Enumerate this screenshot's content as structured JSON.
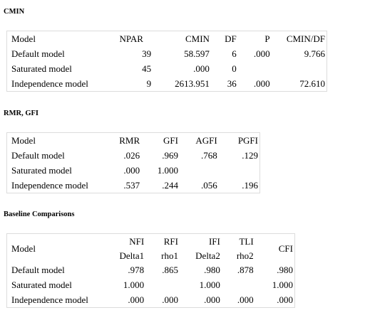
{
  "cmin": {
    "title": "CMIN",
    "headers": [
      "Model",
      "NPAR",
      "CMIN",
      "DF",
      "P",
      "CMIN/DF"
    ],
    "rows": [
      [
        "Default model",
        "39",
        "58.597",
        "6",
        ".000",
        "9.766"
      ],
      [
        "Saturated model",
        "45",
        ".000",
        "0",
        "",
        ""
      ],
      [
        "Independence model",
        "9",
        "2613.951",
        "36",
        ".000",
        "72.610"
      ]
    ]
  },
  "rmr_gfi": {
    "title": "RMR, GFI",
    "headers": [
      "Model",
      "RMR",
      "GFI",
      "AGFI",
      "PGFI"
    ],
    "rows": [
      [
        "Default model",
        ".026",
        ".969",
        ".768",
        ".129"
      ],
      [
        "Saturated model",
        ".000",
        "1.000",
        "",
        ""
      ],
      [
        "Independence model",
        ".537",
        ".244",
        ".056",
        ".196"
      ]
    ]
  },
  "baseline": {
    "title": "Baseline Comparisons",
    "headers_top": [
      "Model",
      "NFI",
      "RFI",
      "IFI",
      "TLI",
      "CFI"
    ],
    "headers_bottom": [
      "Delta1",
      "rho1",
      "Delta2",
      "rho2"
    ],
    "rows": [
      [
        "Default model",
        ".978",
        ".865",
        ".980",
        ".878",
        ".980"
      ],
      [
        "Saturated model",
        "1.000",
        "",
        "1.000",
        "",
        "1.000"
      ],
      [
        "Independence model",
        ".000",
        ".000",
        ".000",
        ".000",
        ".000"
      ]
    ]
  }
}
